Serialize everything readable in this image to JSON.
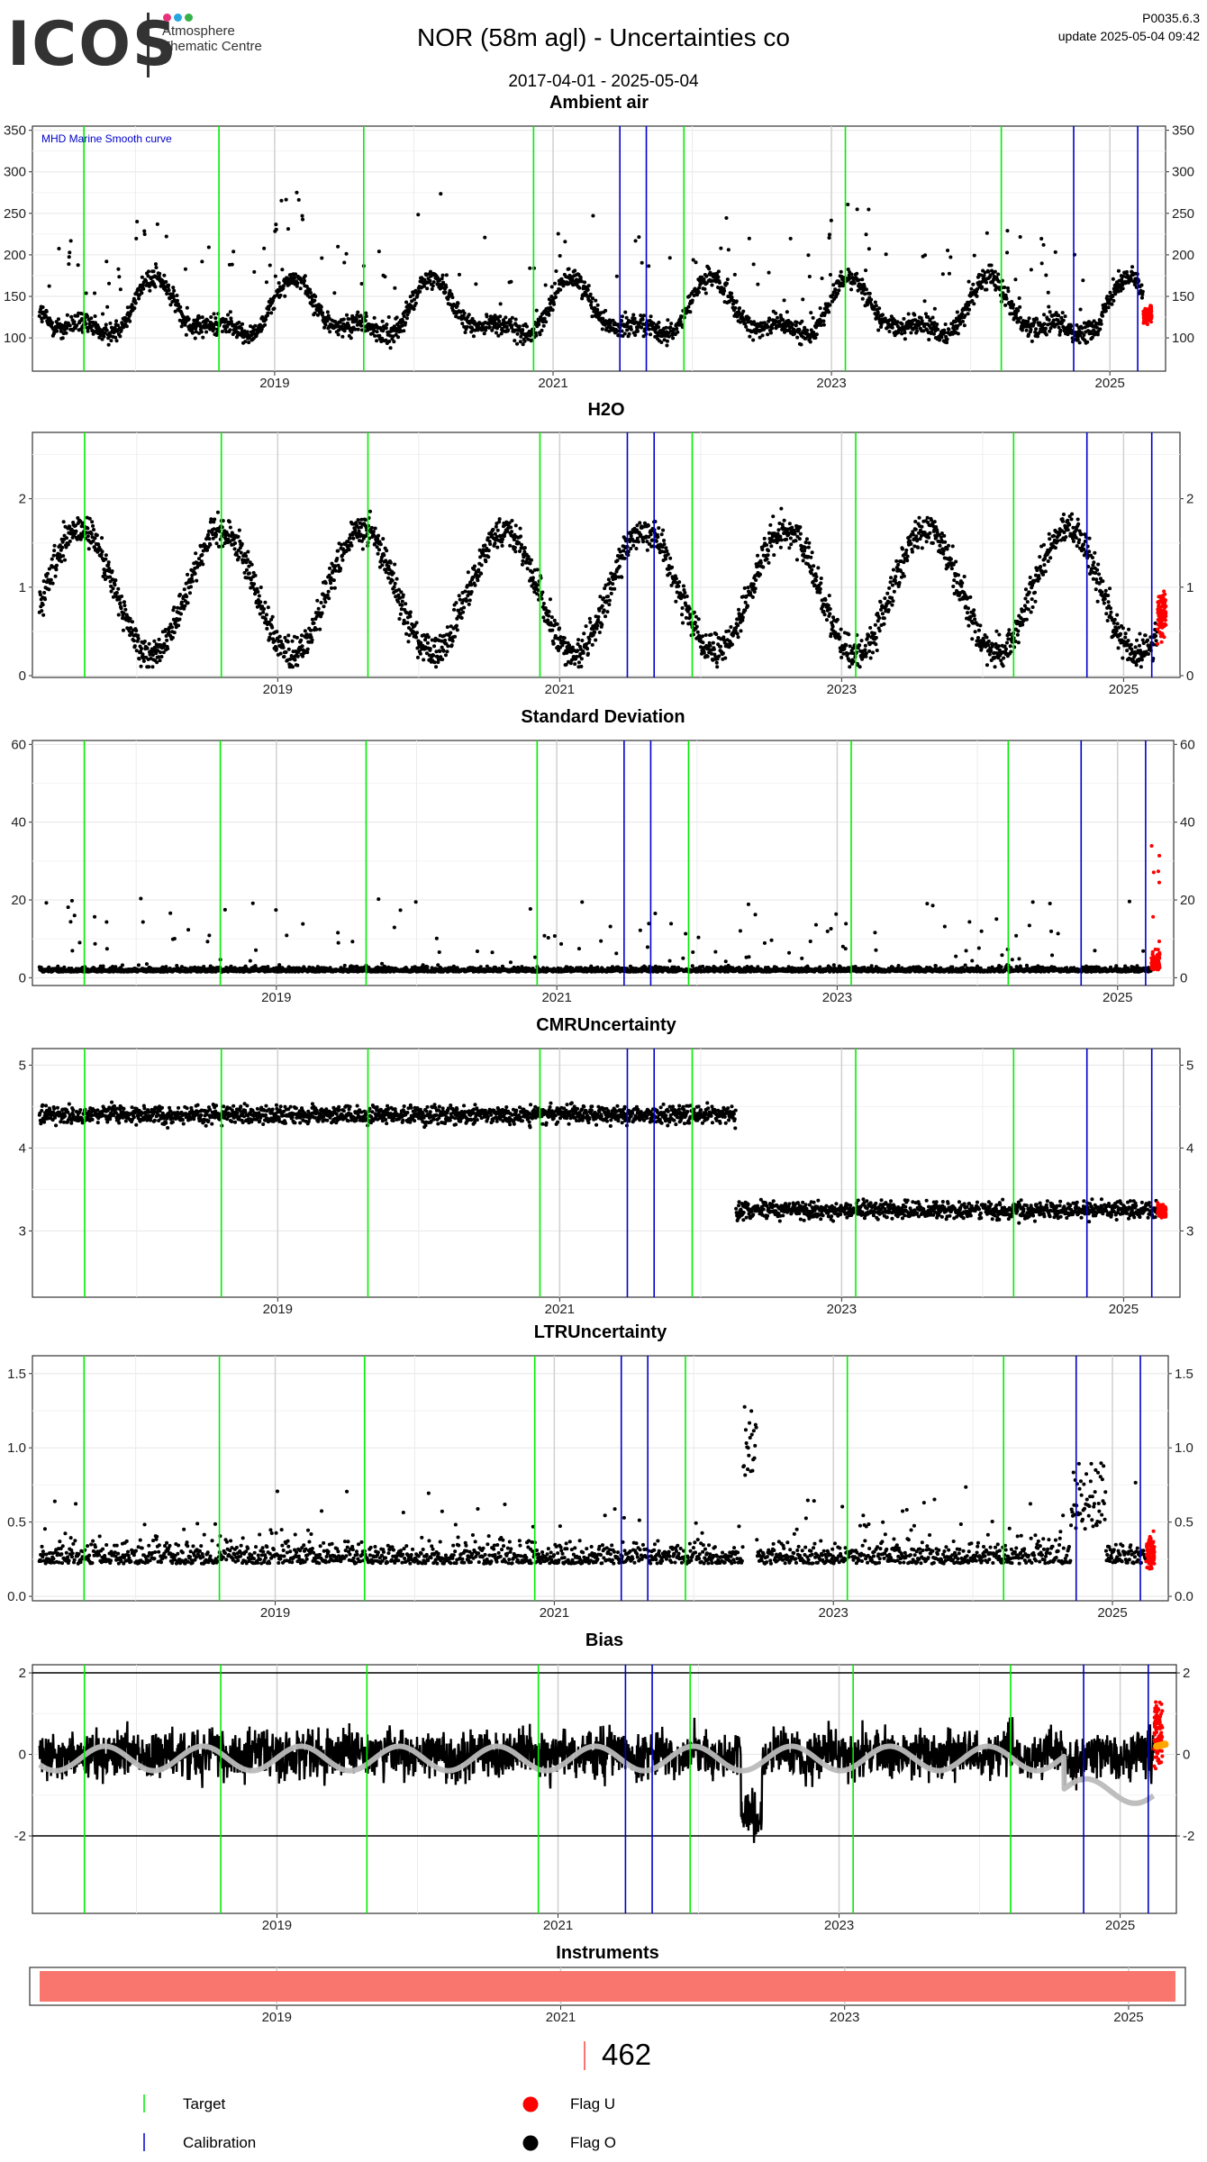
{
  "header": {
    "logo": {
      "word": "ICOS",
      "sub": "Atmosphere Thematic Centre",
      "dot_colors": [
        "#e8327c",
        "#27a6e0",
        "#35b34a"
      ]
    },
    "title": "NOR  (58m agl) - Uncertainties co",
    "date_range": "2017-04-01 - 2025-05-04",
    "version": "P0035.6.3",
    "update": "update  2025-05-04 09:42"
  },
  "chart_data": [
    {
      "type": "scatter",
      "id": "ambient",
      "title": "Ambient air",
      "annotation": "MHD Marine Smooth curve",
      "ylim": [
        60,
        355
      ],
      "yticks": [
        100,
        150,
        200,
        250,
        300,
        350
      ],
      "xlim": [
        2017.26,
        2025.4
      ],
      "xticks": [
        "2019",
        "2021",
        "2023",
        "2025"
      ],
      "grid": true,
      "target_lines": [
        2017.63,
        2018.6,
        2019.64,
        2020.86,
        2021.94,
        2023.1,
        2024.22
      ],
      "calibration_lines": [
        2021.48,
        2021.67,
        2024.74,
        2025.2
      ],
      "flag_u_start": 2025.24
    },
    {
      "type": "scatter",
      "id": "h2o",
      "title": "H2O",
      "ylim": [
        -0.02,
        2.75
      ],
      "yticks": [
        0,
        1,
        2
      ],
      "xlim": [
        2017.26,
        2025.4
      ],
      "xticks": [
        "2019",
        "2021",
        "2023",
        "2025"
      ],
      "grid": true,
      "target_lines": [
        2017.63,
        2018.6,
        2019.64,
        2020.86,
        2021.94,
        2023.1,
        2024.22
      ],
      "calibration_lines": [
        2021.48,
        2021.67,
        2024.74,
        2025.2
      ],
      "flag_u_start": 2025.24
    },
    {
      "type": "scatter",
      "id": "stddev",
      "title": "Standard Deviation",
      "ylim": [
        -2,
        61
      ],
      "yticks": [
        0,
        20,
        40,
        60
      ],
      "xlim": [
        2017.26,
        2025.4
      ],
      "xticks": [
        "2019",
        "2021",
        "2023",
        "2025"
      ],
      "grid": true,
      "target_lines": [
        2017.63,
        2018.6,
        2019.64,
        2020.86,
        2021.94,
        2023.1,
        2024.22
      ],
      "calibration_lines": [
        2021.48,
        2021.67,
        2024.74,
        2025.2
      ],
      "flag_u_start": 2025.24
    },
    {
      "type": "scatter",
      "id": "cmr",
      "title": "CMRUncertainty",
      "ylim": [
        2.2,
        5.2
      ],
      "yticks": [
        3,
        4,
        5
      ],
      "xlim": [
        2017.26,
        2025.4
      ],
      "xticks": [
        "2019",
        "2021",
        "2023",
        "2025"
      ],
      "grid": true,
      "target_lines": [
        2017.63,
        2018.6,
        2019.64,
        2020.86,
        2021.94,
        2023.1,
        2024.22
      ],
      "calibration_lines": [
        2021.48,
        2021.67,
        2024.74,
        2025.2
      ],
      "level_change": 2022.25,
      "level_before": 4.4,
      "level_after": 3.25,
      "flag_u_start": 2025.24
    },
    {
      "type": "scatter",
      "id": "ltr",
      "title": "LTRUncertainty",
      "ylim": [
        -0.03,
        1.62
      ],
      "yticks": [
        0.0,
        0.5,
        1.0,
        1.5
      ],
      "xlim": [
        2017.26,
        2025.4
      ],
      "xticks": [
        "2019",
        "2021",
        "2023",
        "2025"
      ],
      "grid": true,
      "target_lines": [
        2017.63,
        2018.6,
        2019.64,
        2020.86,
        2021.94,
        2023.1,
        2024.22
      ],
      "calibration_lines": [
        2021.48,
        2021.67,
        2024.74,
        2025.2
      ],
      "flag_u_start": 2025.24
    },
    {
      "type": "line",
      "id": "bias",
      "title": "Bias",
      "ylim": [
        -3.9,
        2.2
      ],
      "yticks": [
        -2,
        0,
        2
      ],
      "xlim": [
        2017.26,
        2025.4
      ],
      "xticks": [
        "2019",
        "2021",
        "2023",
        "2025"
      ],
      "grid": true,
      "hlines": [
        -2,
        2
      ],
      "target_lines": [
        2017.63,
        2018.6,
        2019.64,
        2020.86,
        2021.94,
        2023.1,
        2024.22
      ],
      "calibration_lines": [
        2021.48,
        2021.67,
        2024.74,
        2025.2
      ],
      "flag_u_start": 2025.24
    },
    {
      "type": "bar",
      "id": "instruments",
      "title": "Instruments",
      "xlim": [
        2017.26,
        2025.4
      ],
      "xticks": [
        "2019",
        "2021",
        "2023",
        "2025"
      ],
      "bar_start": 2017.33,
      "bar_end": 2025.33,
      "bar_color": "#f8766d",
      "instrument_id": "462"
    }
  ],
  "legend": {
    "target": {
      "label": "Target",
      "color": "#00ee00"
    },
    "calibration": {
      "label": "Calibration",
      "color": "#0000cc"
    },
    "flag_u": {
      "label": "Flag U",
      "color": "#ff0000"
    },
    "flag_o": {
      "label": "Flag O",
      "color": "#000000"
    }
  },
  "colors": {
    "smooth_curve": "#bbbbbb",
    "flag_u_mean": "#ffa500",
    "grid": "#e6e6e6"
  }
}
